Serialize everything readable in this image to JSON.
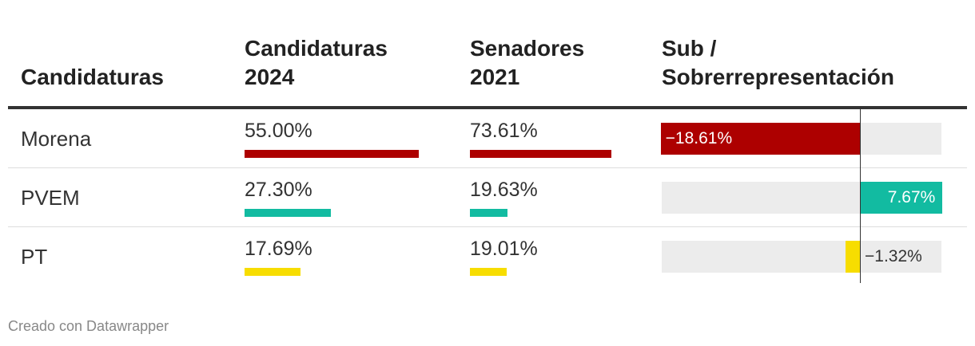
{
  "headers": {
    "col1": "Candidaturas",
    "col2_line1": "Candidaturas",
    "col2_line2": "2024",
    "col3_line1": "Senadores",
    "col3_line2": "2021",
    "col4_line1": "Sub /",
    "col4_line2": "Sobrerrepresentación"
  },
  "rows": [
    {
      "name": "Morena",
      "candidaturas": "55.00%",
      "senadores": "73.61%",
      "diff": "−18.61%",
      "color": "#ad0000"
    },
    {
      "name": "PVEM",
      "candidaturas": "27.30%",
      "senadores": "19.63%",
      "diff": "7.67%",
      "color": "#12bba1"
    },
    {
      "name": "PT",
      "candidaturas": "17.69%",
      "senadores": "19.01%",
      "diff": "−1.32%",
      "color": "#f7dd00"
    }
  ],
  "footer": "Creado con Datawrapper",
  "chart_data": {
    "type": "table",
    "columns": [
      "Candidaturas",
      "Candidaturas 2024",
      "Senadores 2021",
      "Sub / Sobrerrepresentación"
    ],
    "categories": [
      "Morena",
      "PVEM",
      "PT"
    ],
    "series": [
      {
        "name": "Candidaturas 2024",
        "values": [
          55.0,
          27.3,
          17.69
        ]
      },
      {
        "name": "Senadores 2021",
        "values": [
          73.61,
          19.63,
          19.01
        ]
      },
      {
        "name": "Sub / Sobrerrepresentación",
        "values": [
          -18.61,
          7.67,
          -1.32
        ]
      }
    ],
    "colors": {
      "Morena": "#ad0000",
      "PVEM": "#12bba1",
      "PT": "#f7dd00"
    },
    "diff_range": [
      -18.61,
      7.67
    ]
  }
}
